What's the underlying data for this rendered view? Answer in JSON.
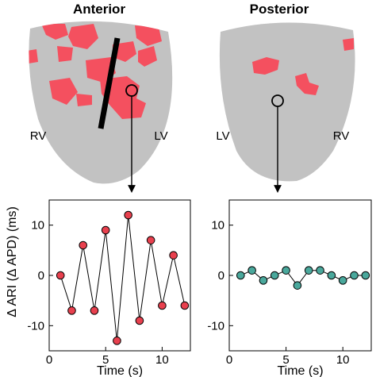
{
  "views": {
    "anterior": {
      "title": "Anterior",
      "left_label": "RV",
      "right_label": "LV"
    },
    "posterior": {
      "title": "Posterior",
      "left_label": "LV",
      "right_label": "RV"
    }
  },
  "colors": {
    "heart": "#c2c2c2",
    "patch": "#f4505f",
    "series_left": "#e8404e",
    "series_right": "#4aa89c"
  },
  "chart_data": [
    {
      "type": "line",
      "panel": "anterior",
      "xlabel": "Time (s)",
      "ylabel": "Δ ARI (Δ APD) (ms)",
      "xlim": [
        0,
        12.5
      ],
      "ylim": [
        -15,
        15
      ],
      "xticks": [
        0,
        5,
        10
      ],
      "yticks": [
        -10,
        0,
        10
      ],
      "x": [
        1,
        2,
        3,
        4,
        5,
        6,
        7,
        8,
        9,
        10,
        11,
        12
      ],
      "values": [
        0,
        -7,
        6,
        -7,
        9,
        -13,
        12,
        -9,
        7,
        -6,
        4,
        -6
      ]
    },
    {
      "type": "line",
      "panel": "posterior",
      "xlabel": "Time (s)",
      "ylabel": "",
      "xlim": [
        0,
        12.5
      ],
      "ylim": [
        -15,
        15
      ],
      "xticks": [
        0,
        5,
        10
      ],
      "yticks": [
        -10,
        0,
        10
      ],
      "x": [
        1,
        2,
        3,
        4,
        5,
        6,
        7,
        8,
        9,
        10,
        11,
        12
      ],
      "values": [
        0,
        1,
        -1,
        0,
        1,
        -2,
        1,
        1,
        0,
        -1,
        0,
        0
      ]
    }
  ]
}
